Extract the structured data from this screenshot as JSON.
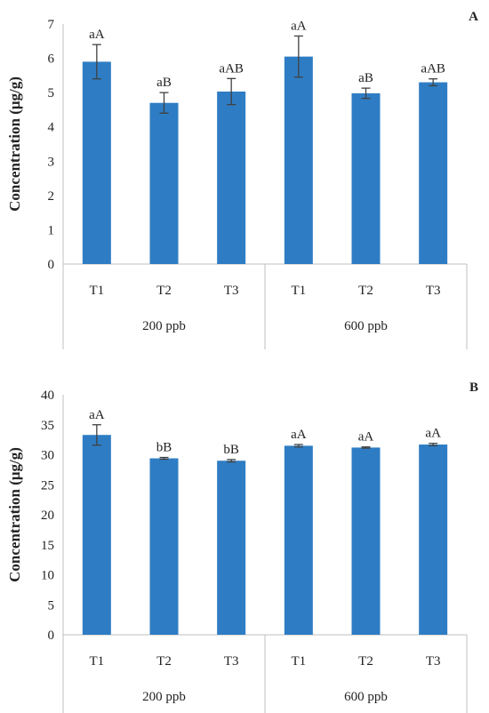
{
  "chart_data": [
    {
      "type": "bar",
      "panel_label": "A",
      "ylabel": "Concentration (μg/g)",
      "ylim": [
        0,
        7
      ],
      "yticks": [
        0,
        1,
        2,
        3,
        4,
        5,
        6,
        7
      ],
      "groups": [
        "200 ppb",
        "600 ppb"
      ],
      "categories": [
        "T1",
        "T2",
        "T3",
        "T1",
        "T2",
        "T3"
      ],
      "values": [
        5.9,
        4.7,
        5.03,
        6.05,
        4.98,
        5.3
      ],
      "errors": [
        0.5,
        0.3,
        0.38,
        0.6,
        0.15,
        0.1
      ],
      "annotations": [
        "aA",
        "aB",
        "aAB",
        "aA",
        "aB",
        "aAB"
      ],
      "color": "#2E7DC4"
    },
    {
      "type": "bar",
      "panel_label": "B",
      "ylabel": "Concentration (μg/g)",
      "ylim": [
        0,
        40
      ],
      "yticks": [
        0,
        5,
        10,
        15,
        20,
        25,
        30,
        35,
        40
      ],
      "groups": [
        "200 ppb",
        "600 ppb"
      ],
      "categories": [
        "T1",
        "T2",
        "T3",
        "T1",
        "T2",
        "T3"
      ],
      "values": [
        33.3,
        29.4,
        29.0,
        31.5,
        31.2,
        31.7
      ],
      "errors": [
        1.7,
        0.15,
        0.2,
        0.2,
        0.1,
        0.2
      ],
      "annotations": [
        "aA",
        "bB",
        "bB",
        "aA",
        "aA",
        "aA"
      ],
      "color": "#2E7DC4"
    }
  ]
}
